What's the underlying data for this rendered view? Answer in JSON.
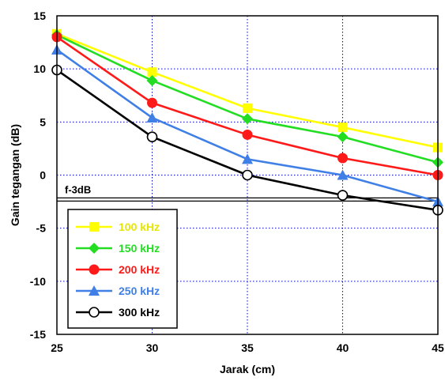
{
  "chart_data": {
    "type": "line",
    "xlabel": "Jarak (cm)",
    "ylabel": "Gain tegangan (dB)",
    "xlim": [
      25,
      45
    ],
    "ylim": [
      -15,
      15
    ],
    "xticks": [
      25,
      30,
      35,
      40,
      45
    ],
    "yticks": [
      15,
      10,
      5,
      0,
      -5,
      -10,
      -15
    ],
    "x": [
      25,
      30,
      35,
      40,
      45
    ],
    "grid": true,
    "legend_position": "bottom-left",
    "series": [
      {
        "name": "100 kHz",
        "color": "#ffff00",
        "marker": "square",
        "values": [
          13.3,
          9.7,
          6.3,
          4.5,
          2.6
        ]
      },
      {
        "name": "150 kHz",
        "color": "#22dd22",
        "marker": "diamond",
        "values": [
          13.2,
          8.9,
          5.3,
          3.6,
          1.2
        ]
      },
      {
        "name": "200 kHz",
        "color": "#ff1a1a",
        "marker": "circle",
        "values": [
          13.0,
          6.8,
          3.8,
          1.6,
          0.0
        ]
      },
      {
        "name": "250 kHz",
        "color": "#3f7fe6",
        "marker": "triangle",
        "values": [
          11.8,
          5.4,
          1.5,
          0.0,
          -2.5
        ]
      },
      {
        "name": "300 kHz",
        "color": "#000000",
        "marker": "open-circle",
        "values": [
          9.9,
          3.6,
          0.0,
          -1.9,
          -3.3
        ]
      }
    ],
    "reference_line": {
      "label": "f-3dB",
      "y": -2.3
    }
  }
}
